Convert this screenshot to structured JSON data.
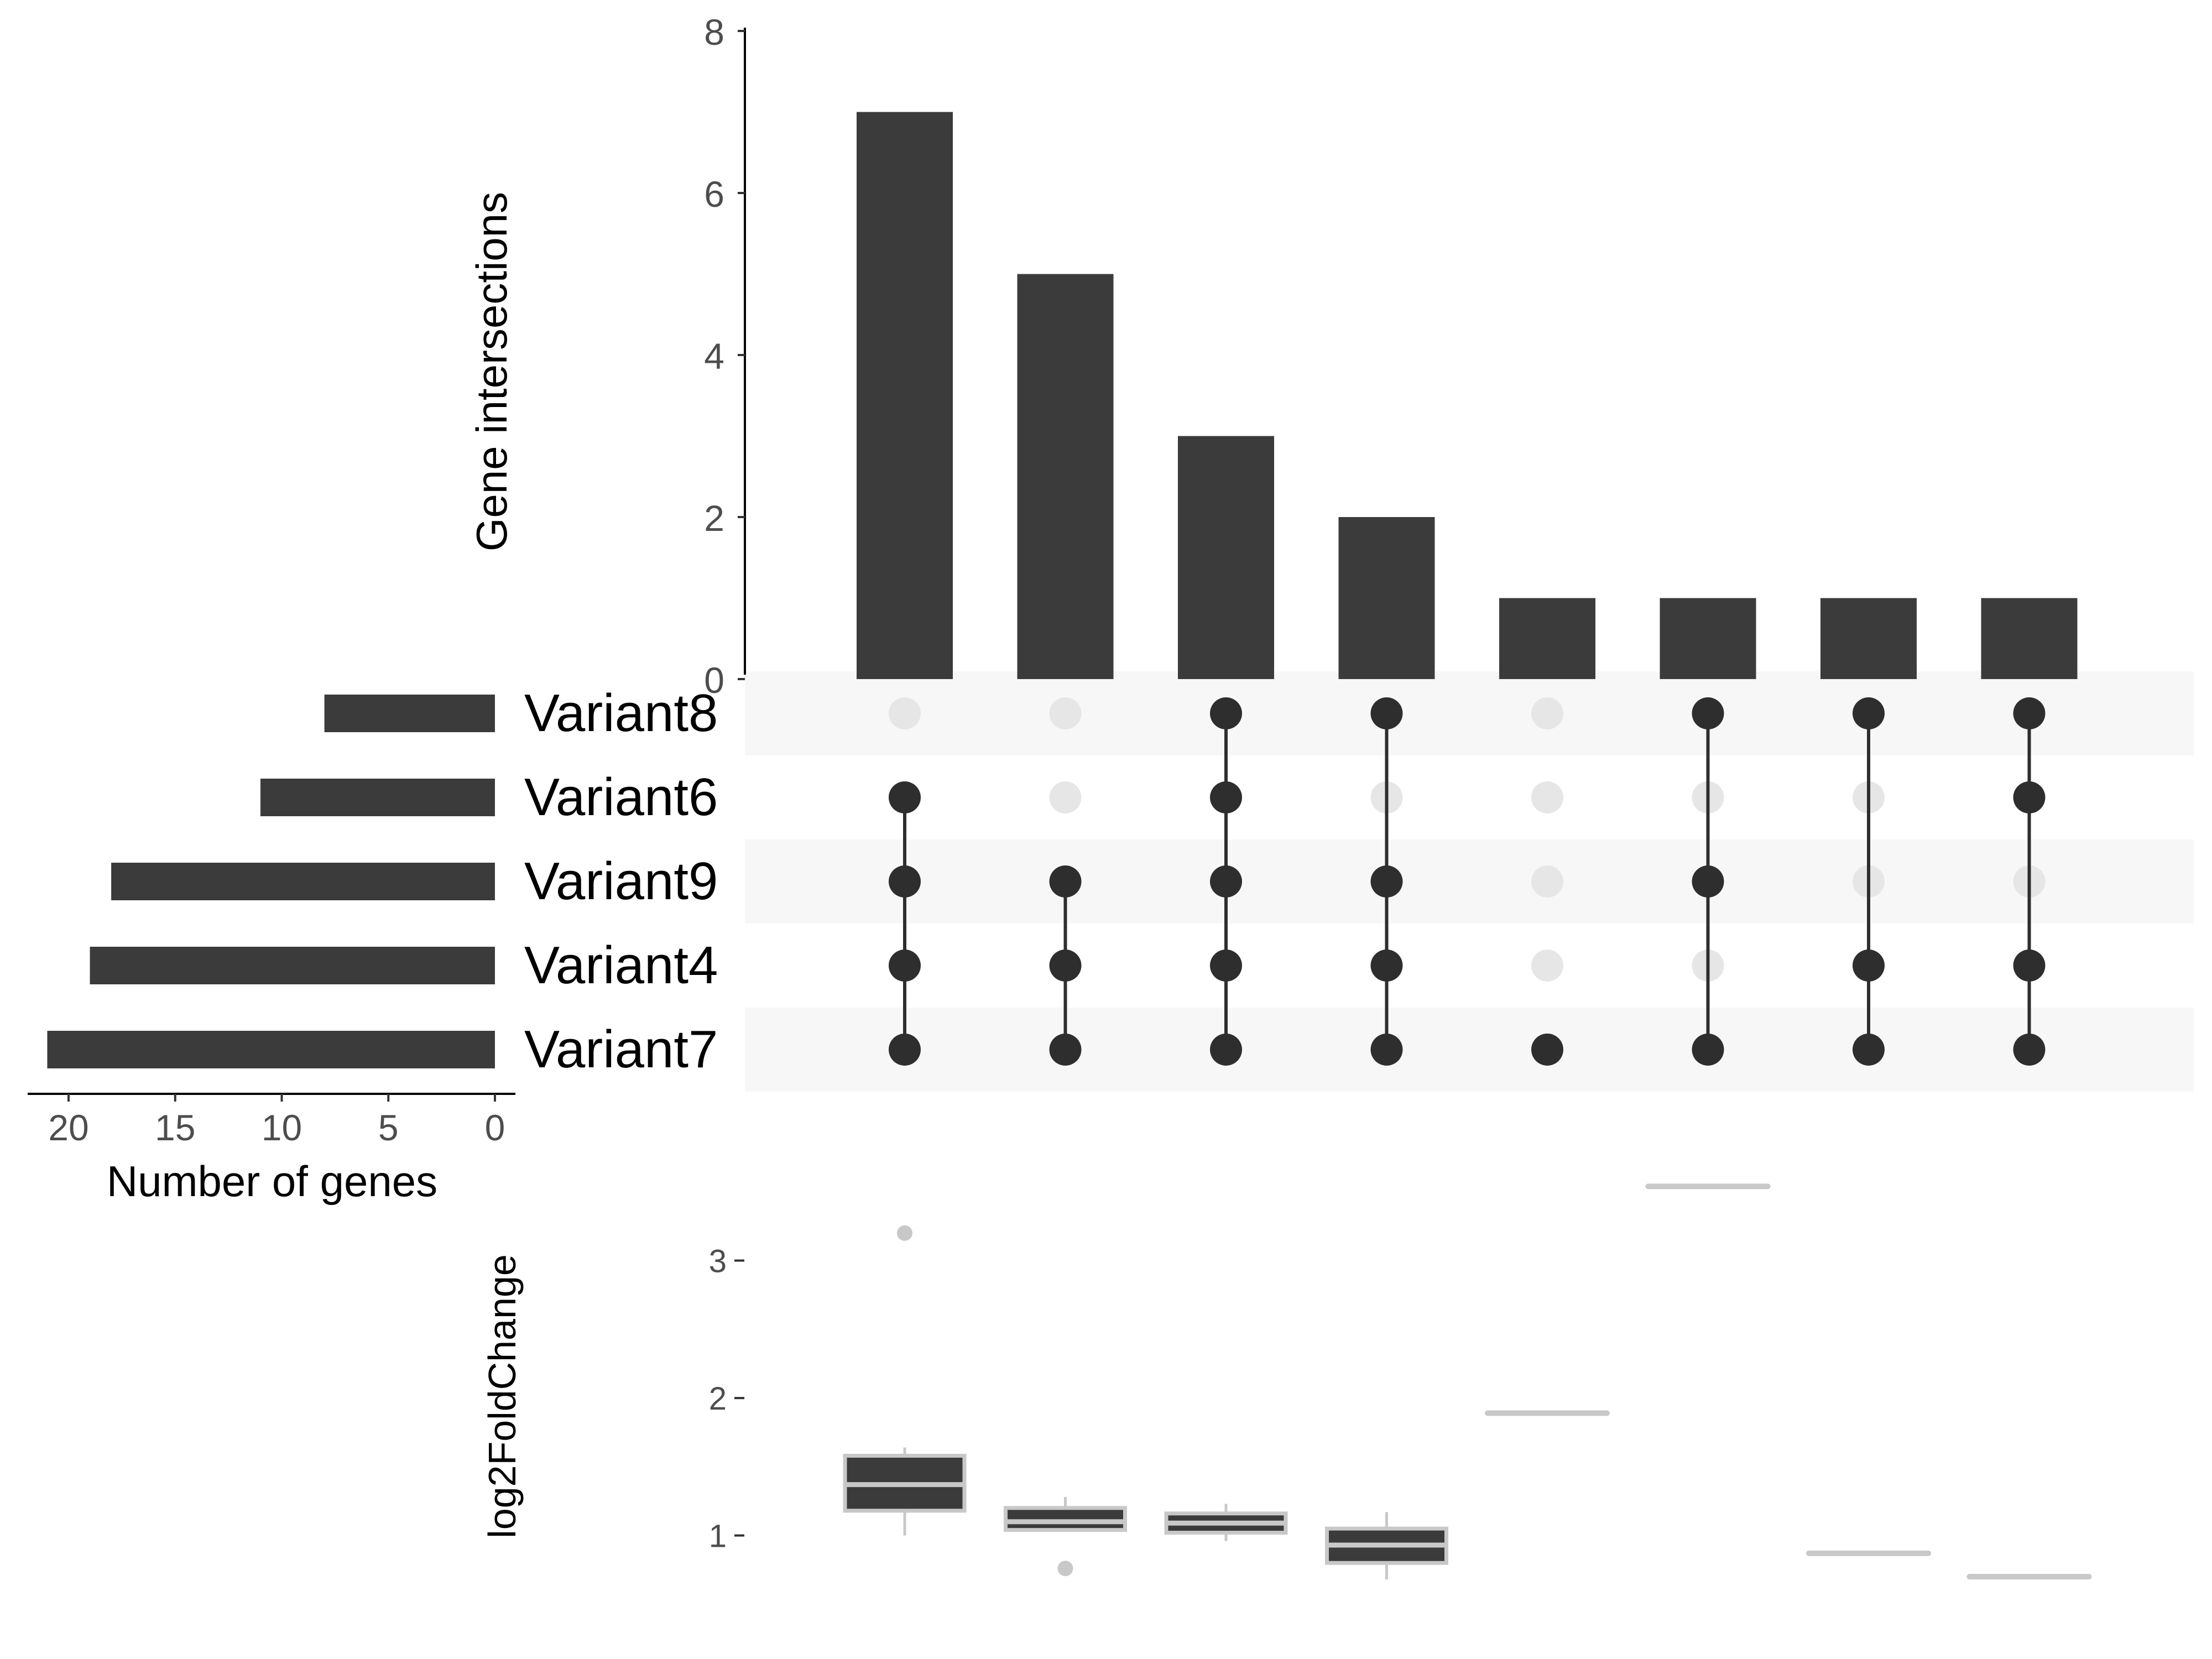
{
  "chart_data": {
    "type": "upset",
    "colors": {
      "bar": "#3b3b3b",
      "dot_active": "#2e2e2e",
      "dot_inactive": "#e6e6e6",
      "row_stripe": "#f7f7f7",
      "box_fill": "#3b3b3b",
      "box_line": "#c8c8c8",
      "axis_text": "#4d4d4d"
    },
    "intersection_size": {
      "ylabel": "Gene intersections",
      "ylim": [
        0,
        8
      ],
      "ticks": [
        "0",
        "2",
        "4",
        "6",
        "8"
      ],
      "values": [
        7,
        5,
        3,
        2,
        1,
        1,
        1,
        1
      ]
    },
    "set_size": {
      "xlabel": "Number of genes",
      "xlim": [
        0,
        22
      ],
      "ticks": [
        "20",
        "15",
        "10",
        "5",
        "0"
      ],
      "sets": [
        "Variant8",
        "Variant6",
        "Variant9",
        "Variant4",
        "Variant7"
      ],
      "values": [
        8,
        11,
        18,
        19,
        21
      ]
    },
    "matrix": [
      [
        false,
        true,
        true,
        true,
        true
      ],
      [
        false,
        false,
        true,
        true,
        true
      ],
      [
        true,
        true,
        true,
        true,
        true
      ],
      [
        true,
        false,
        true,
        true,
        true
      ],
      [
        false,
        false,
        false,
        false,
        true
      ],
      [
        true,
        false,
        true,
        false,
        true
      ],
      [
        true,
        false,
        false,
        true,
        true
      ],
      [
        true,
        true,
        false,
        true,
        true
      ]
    ],
    "boxplot": {
      "ylabel": "log2FoldChange",
      "ticks": [
        "1",
        "2",
        "3"
      ],
      "ylim": [
        0.6,
        3.65
      ],
      "boxes": [
        {
          "q1": 1.18,
          "median": 1.37,
          "q3": 1.58,
          "low": 1.0,
          "high": 1.64,
          "outliers": [
            3.2
          ]
        },
        {
          "q1": 1.04,
          "median": 1.1,
          "q3": 1.2,
          "low": 1.04,
          "high": 1.28,
          "outliers": [
            0.76
          ]
        },
        {
          "q1": 1.02,
          "median": 1.09,
          "q3": 1.16,
          "low": 0.96,
          "high": 1.23,
          "outliers": []
        },
        {
          "q1": 0.8,
          "median": 0.93,
          "q3": 1.05,
          "low": 0.68,
          "high": 1.17,
          "outliers": []
        },
        {
          "q1": 1.89,
          "median": 1.89,
          "q3": 1.89,
          "low": 1.89,
          "high": 1.89,
          "outliers": []
        },
        {
          "q1": 3.54,
          "median": 3.54,
          "q3": 3.54,
          "low": 3.54,
          "high": 3.54,
          "outliers": []
        },
        {
          "q1": 0.87,
          "median": 0.87,
          "q3": 0.87,
          "low": 0.87,
          "high": 0.87,
          "outliers": []
        },
        {
          "q1": 0.7,
          "median": 0.7,
          "q3": 0.7,
          "low": 0.7,
          "high": 0.7,
          "outliers": []
        }
      ]
    }
  }
}
